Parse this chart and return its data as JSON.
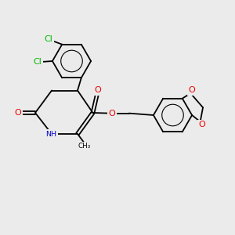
{
  "background_color": "#ebebeb",
  "bond_color": "#000000",
  "cl_color": "#00bb00",
  "o_color": "#ee0000",
  "n_color": "#0000cc",
  "figsize": [
    3.0,
    3.0
  ],
  "dpi": 100,
  "xlim": [
    0,
    10
  ],
  "ylim": [
    0,
    10
  ]
}
